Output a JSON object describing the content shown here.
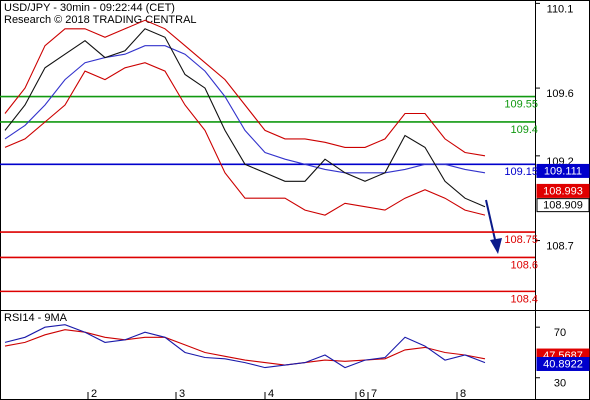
{
  "chart_data": [
    {
      "type": "line",
      "title": "USD/JPY - 30min - 09:22:44 (CET)",
      "subtitle": "Research © 2018 TRADING CENTRAL",
      "xlim": [
        -0.25,
        26.5
      ],
      "ylim": [
        108.29,
        110.12
      ],
      "yticks": [
        110.1,
        109.6,
        109.2,
        108.7
      ],
      "series": [
        {
          "color": "#cc0000",
          "values": [
            109.45,
            109.6,
            109.85,
            109.95,
            109.95,
            109.9,
            109.95,
            110.0,
            109.95,
            109.85,
            109.75,
            109.65,
            109.5,
            109.35,
            109.3,
            109.3,
            109.28,
            109.25,
            109.25,
            109.3,
            109.45,
            109.45,
            109.3,
            109.22,
            109.2
          ]
        },
        {
          "color": "#cc0000",
          "values": [
            109.25,
            109.3,
            109.4,
            109.5,
            109.7,
            109.65,
            109.72,
            109.75,
            109.7,
            109.5,
            109.35,
            109.1,
            108.95,
            108.95,
            108.95,
            108.88,
            108.85,
            108.92,
            108.9,
            108.88,
            108.95,
            109.0,
            108.95,
            108.88,
            108.85
          ]
        },
        {
          "color": "#3333cc",
          "values": [
            109.3,
            109.38,
            109.5,
            109.65,
            109.75,
            109.78,
            109.8,
            109.85,
            109.85,
            109.8,
            109.7,
            109.55,
            109.35,
            109.22,
            109.18,
            109.15,
            109.12,
            109.1,
            109.1,
            109.1,
            109.12,
            109.15,
            109.15,
            109.12,
            109.1
          ]
        },
        {
          "color": "#111111",
          "values": [
            109.35,
            109.5,
            109.72,
            109.8,
            109.88,
            109.78,
            109.82,
            109.95,
            109.9,
            109.68,
            109.6,
            109.35,
            109.15,
            109.1,
            109.05,
            109.05,
            109.18,
            109.1,
            109.05,
            109.1,
            109.32,
            109.25,
            109.05,
            108.95,
            108.9
          ]
        }
      ],
      "levels": [
        {
          "value": 109.55,
          "color": "#119911"
        },
        {
          "value": 109.4,
          "color": "#119911"
        },
        {
          "value": 109.15,
          "color": "#0000cc"
        },
        {
          "value": 108.75,
          "color": "#dd0000"
        },
        {
          "value": 108.6,
          "color": "#dd0000"
        },
        {
          "value": 108.4,
          "color": "#dd0000"
        }
      ],
      "tags": [
        {
          "value": 109.111,
          "color": "#0000cc",
          "text_color": "#ffffff"
        },
        {
          "value": 108.993,
          "color": "#e00000",
          "text_color": "#ffffff"
        },
        {
          "value": 108.909,
          "color": "#ffffff",
          "text_color": "#000000"
        }
      ]
    },
    {
      "type": "line",
      "title": "RSI14 - 9MA",
      "xlim": [
        -0.25,
        26.5
      ],
      "xticks": [
        {
          "value": 4.15,
          "label": "2"
        },
        {
          "value": 8.55,
          "label": "3"
        },
        {
          "value": 13,
          "label": "4"
        },
        {
          "value": 17.55,
          "label": "6"
        },
        {
          "value": 18.15,
          "label": "7"
        },
        {
          "value": 22.6,
          "label": "8"
        }
      ],
      "ylim": [
        12.4,
        82.8
      ],
      "yticks": [
        70,
        30
      ],
      "series": [
        {
          "color": "#cc0000",
          "values": [
            55,
            58,
            64,
            68,
            66,
            62,
            60,
            62,
            62,
            56,
            50,
            47,
            44,
            42,
            40,
            42,
            44,
            43,
            44,
            45,
            52,
            54,
            50,
            48,
            45
          ]
        },
        {
          "color": "#1a1aaa",
          "values": [
            58,
            62,
            70,
            72,
            66,
            58,
            60,
            66,
            62,
            50,
            46,
            45,
            42,
            38,
            40,
            42,
            48,
            38,
            44,
            46,
            62,
            55,
            44,
            48,
            42
          ]
        }
      ],
      "tags": [
        {
          "value": 47.5687,
          "color": "#e00000",
          "text_color": "#ffffff"
        },
        {
          "value": 40.8922,
          "color": "#0000cc",
          "text_color": "#ffffff"
        }
      ]
    }
  ]
}
